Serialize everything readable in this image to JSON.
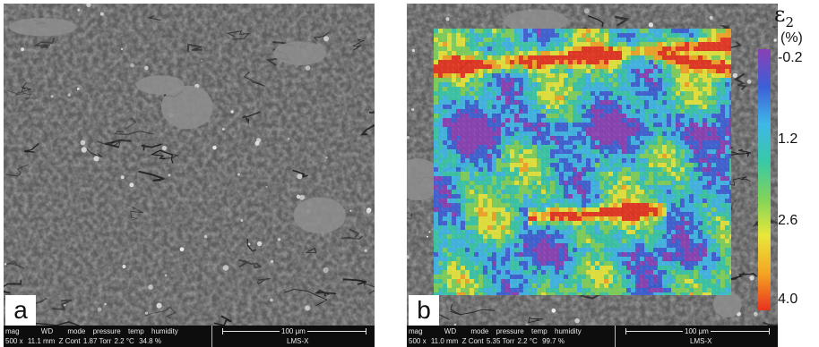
{
  "panels": [
    {
      "letter": "a",
      "databar": {
        "headers": [
          "mag",
          "WD",
          "mode",
          "pressure",
          "temp",
          "humidity"
        ],
        "values": [
          "500 x",
          "11.1 mm",
          "Z Cont",
          "1.87 Torr",
          "2.2 °C",
          "34.8 %"
        ],
        "scale": "100 μm",
        "instrument": "LMS-X"
      }
    },
    {
      "letter": "b",
      "databar": {
        "headers": [
          "mag",
          "WD",
          "mode",
          "pressure",
          "temp",
          "humidity"
        ],
        "values": [
          "500 x",
          "11.0 mm",
          "Z Cont",
          "5.35 Torr",
          "2.2 °C",
          "99.7 %"
        ],
        "scale": "100 μm",
        "instrument": "LMS-X"
      }
    }
  ],
  "colorbar": {
    "symbol": "ε",
    "subscript": "2",
    "unit": "(%)",
    "ticks": [
      "-0.2",
      "1.2",
      "2.6",
      "4.0"
    ],
    "colors": [
      "#8a3fb5",
      "#3d5fd6",
      "#3fb7e8",
      "#38c9a8",
      "#7fd35a",
      "#e8e83a",
      "#f5a623",
      "#e8321e"
    ]
  }
}
